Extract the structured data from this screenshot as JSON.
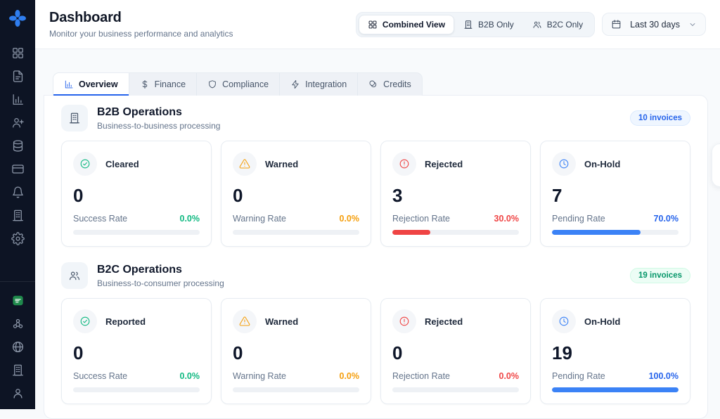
{
  "sidebar": {
    "logo_icon": "clover-logo",
    "top_icons": [
      "grid",
      "document",
      "bar-chart",
      "user-plus",
      "database",
      "credit-card",
      "bell",
      "building",
      "gear"
    ],
    "bottom_icons": [
      "saudi-flag",
      "network",
      "globe",
      "building",
      "user"
    ]
  },
  "header": {
    "title": "Dashboard",
    "subtitle": "Monitor your business performance and analytics",
    "view_options": [
      {
        "label": "Combined View",
        "icon": "grid",
        "active": true
      },
      {
        "label": "B2B Only",
        "icon": "building",
        "active": false
      },
      {
        "label": "B2C Only",
        "icon": "users",
        "active": false
      }
    ],
    "date_filter": {
      "label": "Last 30 days",
      "icon": "calendar"
    }
  },
  "tabs": [
    {
      "label": "Overview",
      "icon": "bar-chart",
      "active": true
    },
    {
      "label": "Finance",
      "icon": "dollar",
      "active": false
    },
    {
      "label": "Compliance",
      "icon": "shield",
      "active": false
    },
    {
      "label": "Integration",
      "icon": "zap",
      "active": false
    },
    {
      "label": "Credits",
      "icon": "coins",
      "active": false
    }
  ],
  "sections": [
    {
      "id": "b2b",
      "icon": "building",
      "title": "B2B Operations",
      "subtitle": "Business-to-business processing",
      "badge": "10 invoices",
      "badge_color": "blue",
      "cards": [
        {
          "label": "Cleared",
          "icon": "check-circle",
          "value": "0",
          "rate_label": "Success Rate",
          "rate": "0.0%",
          "percent": 0,
          "color": "green"
        },
        {
          "label": "Warned",
          "icon": "warning-triangle",
          "value": "0",
          "rate_label": "Warning Rate",
          "rate": "0.0%",
          "percent": 0,
          "color": "orange"
        },
        {
          "label": "Rejected",
          "icon": "alert-circle",
          "value": "3",
          "rate_label": "Rejection Rate",
          "rate": "30.0%",
          "percent": 30,
          "color": "red"
        },
        {
          "label": "On-Hold",
          "icon": "clock",
          "value": "7",
          "rate_label": "Pending Rate",
          "rate": "70.0%",
          "percent": 70,
          "color": "blue"
        }
      ]
    },
    {
      "id": "b2c",
      "icon": "users",
      "title": "B2C Operations",
      "subtitle": "Business-to-consumer processing",
      "badge": "19 invoices",
      "badge_color": "green",
      "cards": [
        {
          "label": "Reported",
          "icon": "check-circle",
          "value": "0",
          "rate_label": "Success Rate",
          "rate": "0.0%",
          "percent": 0,
          "color": "green"
        },
        {
          "label": "Warned",
          "icon": "warning-triangle",
          "value": "0",
          "rate_label": "Warning Rate",
          "rate": "0.0%",
          "percent": 0,
          "color": "orange"
        },
        {
          "label": "Rejected",
          "icon": "alert-circle",
          "value": "0",
          "rate_label": "Rejection Rate",
          "rate": "0.0%",
          "percent": 0,
          "color": "red"
        },
        {
          "label": "On-Hold",
          "icon": "clock",
          "value": "19",
          "rate_label": "Pending Rate",
          "rate": "100.0%",
          "percent": 100,
          "color": "blue"
        }
      ]
    }
  ],
  "colors": {
    "accent_blue": "#2563eb",
    "status_green": "#10b981",
    "status_orange": "#f59e0b",
    "status_red": "#ef4444",
    "status_blue": "#3b82f6",
    "sidebar_bg": "#0d1424",
    "logo_blue": "#2f7ef0",
    "flag_green": "#1f8a4c"
  }
}
